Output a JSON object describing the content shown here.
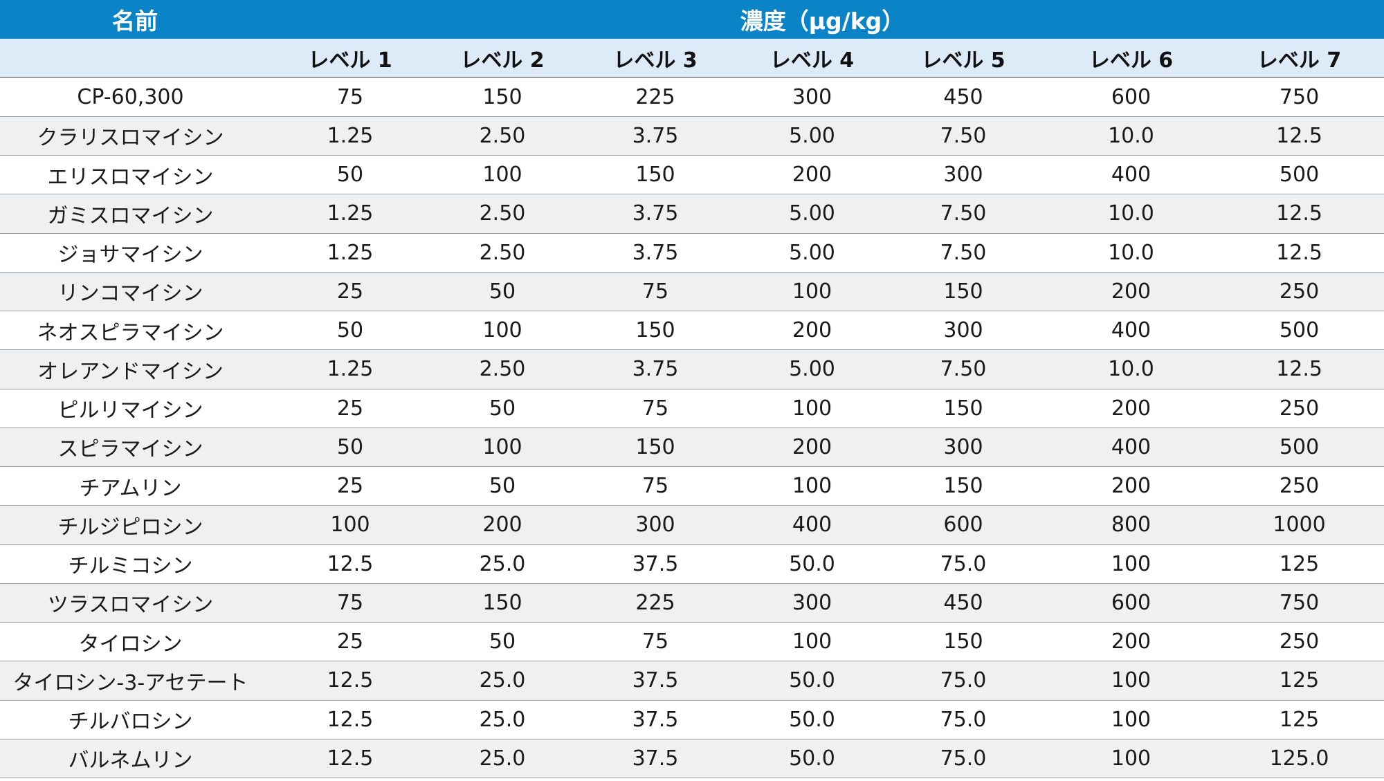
{
  "header": {
    "name_label": "名前",
    "concentration_label": "濃度（µg/kg）",
    "levels": [
      "レベル 1",
      "レベル 2",
      "レベル 3",
      "レベル 4",
      "レベル 5",
      "レベル 6",
      "レベル 7"
    ]
  },
  "colors": {
    "header_blue": "#0a84c6",
    "subheader_light_blue": "#ddeaf7",
    "row_stripe_gray": "#eff0f2"
  },
  "rows": [
    {
      "name": "CP-60,300",
      "values": [
        "75",
        "150",
        "225",
        "300",
        "450",
        "600",
        "750"
      ]
    },
    {
      "name": "クラリスロマイシン",
      "values": [
        "1.25",
        "2.50",
        "3.75",
        "5.00",
        "7.50",
        "10.0",
        "12.5"
      ]
    },
    {
      "name": "エリスロマイシン",
      "values": [
        "50",
        "100",
        "150",
        "200",
        "300",
        "400",
        "500"
      ]
    },
    {
      "name": "ガミスロマイシン",
      "values": [
        "1.25",
        "2.50",
        "3.75",
        "5.00",
        "7.50",
        "10.0",
        "12.5"
      ]
    },
    {
      "name": "ジョサマイシン",
      "values": [
        "1.25",
        "2.50",
        "3.75",
        "5.00",
        "7.50",
        "10.0",
        "12.5"
      ]
    },
    {
      "name": "リンコマイシン",
      "values": [
        "25",
        "50",
        "75",
        "100",
        "150",
        "200",
        "250"
      ]
    },
    {
      "name": "ネオスピラマイシン",
      "values": [
        "50",
        "100",
        "150",
        "200",
        "300",
        "400",
        "500"
      ]
    },
    {
      "name": "オレアンドマイシン",
      "values": [
        "1.25",
        "2.50",
        "3.75",
        "5.00",
        "7.50",
        "10.0",
        "12.5"
      ]
    },
    {
      "name": "ピルリマイシン",
      "values": [
        "25",
        "50",
        "75",
        "100",
        "150",
        "200",
        "250"
      ]
    },
    {
      "name": "スピラマイシン",
      "values": [
        "50",
        "100",
        "150",
        "200",
        "300",
        "400",
        "500"
      ]
    },
    {
      "name": "チアムリン",
      "values": [
        "25",
        "50",
        "75",
        "100",
        "150",
        "200",
        "250"
      ]
    },
    {
      "name": "チルジピロシン",
      "values": [
        "100",
        "200",
        "300",
        "400",
        "600",
        "800",
        "1000"
      ]
    },
    {
      "name": "チルミコシン",
      "values": [
        "12.5",
        "25.0",
        "37.5",
        "50.0",
        "75.0",
        "100",
        "125"
      ]
    },
    {
      "name": "ツラスロマイシン",
      "values": [
        "75",
        "150",
        "225",
        "300",
        "450",
        "600",
        "750"
      ]
    },
    {
      "name": "タイロシン",
      "values": [
        "25",
        "50",
        "75",
        "100",
        "150",
        "200",
        "250"
      ]
    },
    {
      "name": "タイロシン-3-アセテート",
      "values": [
        "12.5",
        "25.0",
        "37.5",
        "50.0",
        "75.0",
        "100",
        "125"
      ]
    },
    {
      "name": "チルバロシン",
      "values": [
        "12.5",
        "25.0",
        "37.5",
        "50.0",
        "75.0",
        "100",
        "125"
      ]
    },
    {
      "name": "バルネムリン",
      "values": [
        "12.5",
        "25.0",
        "37.5",
        "50.0",
        "75.0",
        "100",
        "125.0"
      ]
    }
  ]
}
